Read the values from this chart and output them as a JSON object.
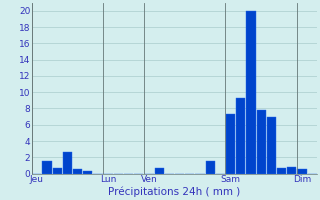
{
  "xlabel": "Précipitations 24h ( mm )",
  "background_color": "#d4eeee",
  "grid_color": "#aacccc",
  "bar_color_main": "#0044cc",
  "bar_color_edge": "#2266ee",
  "ylim": [
    0,
    21
  ],
  "yticks": [
    0,
    2,
    4,
    6,
    8,
    10,
    12,
    14,
    16,
    18,
    20
  ],
  "num_bars": 28,
  "values": [
    0,
    1.5,
    0.7,
    2.6,
    0.5,
    0.3,
    0,
    0,
    0,
    0,
    0,
    0,
    0.7,
    0,
    0,
    0,
    0,
    1.6,
    0,
    7.3,
    9.3,
    20.0,
    7.8,
    7.0,
    0.7,
    0.8,
    0.6,
    0
  ],
  "tick_positions": [
    0,
    7,
    11,
    19,
    26
  ],
  "tick_labels": [
    "Jeu",
    "Lun",
    "Ven",
    "Sam",
    "Dim"
  ],
  "vline_positions": [
    0,
    7,
    11,
    19,
    26
  ],
  "label_fontsize": 7.5,
  "tick_fontsize": 6.5,
  "label_color": "#3333bb"
}
